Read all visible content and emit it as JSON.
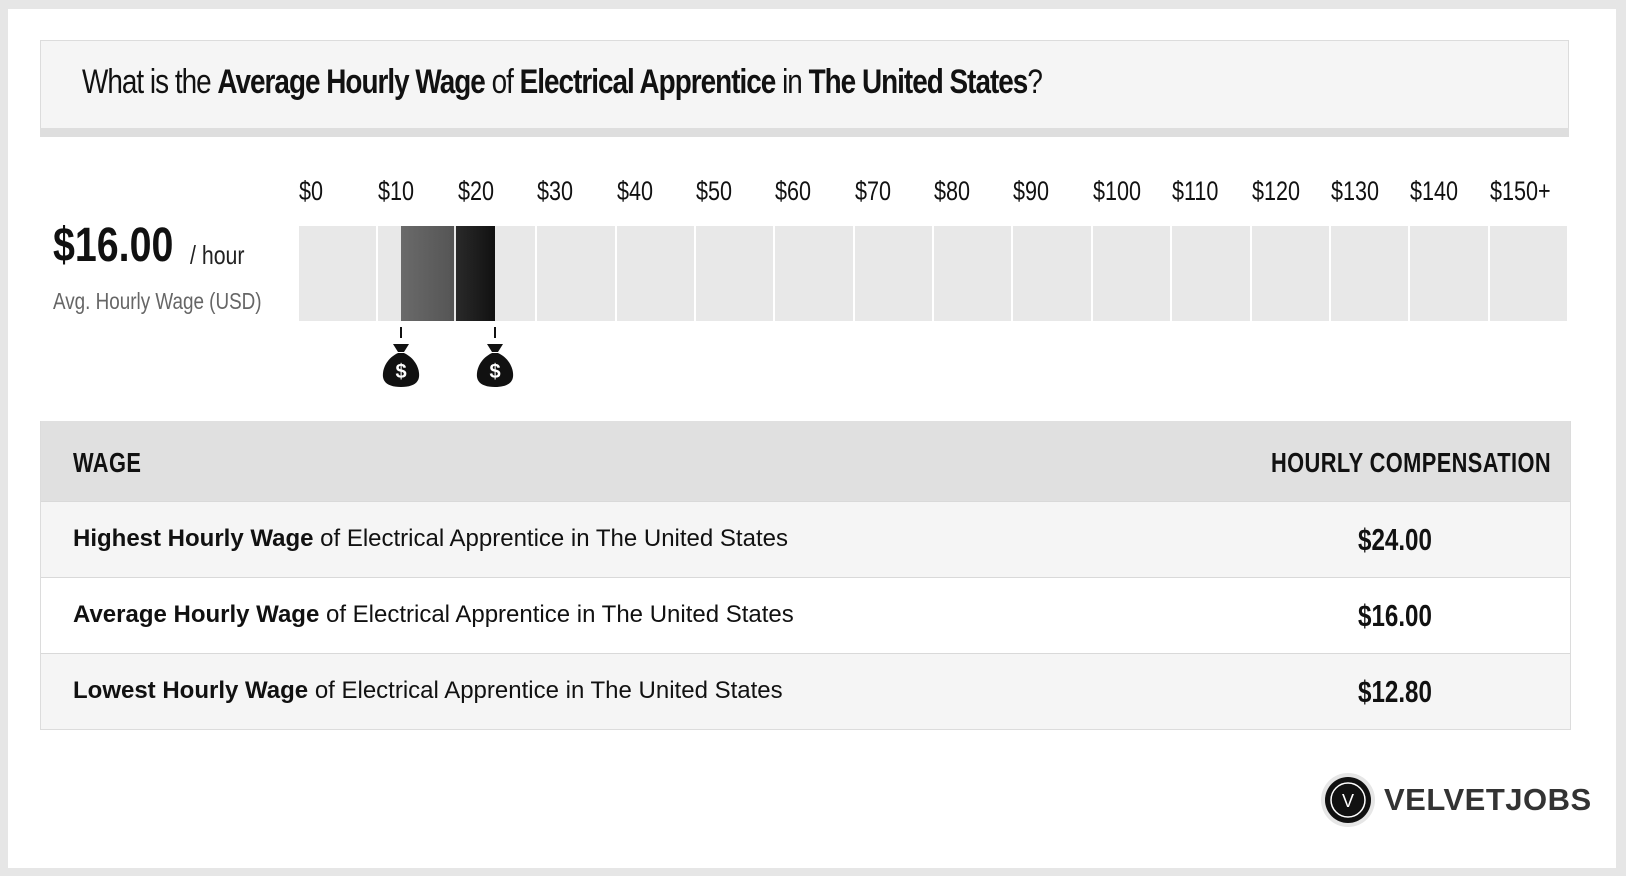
{
  "header": {
    "q_prefix": "What is the",
    "q_metric": "Average Hourly Wage",
    "q_of": "of",
    "q_job": "Electrical Apprentice",
    "q_in": "in",
    "q_location": "The United States",
    "q_end": "?"
  },
  "average": {
    "value": "$16.00",
    "unit": "/ hour",
    "caption": "Avg. Hourly Wage (USD)"
  },
  "chart_data": {
    "type": "bar",
    "ticks": [
      "$0",
      "$10",
      "$20",
      "$30",
      "$40",
      "$50",
      "$60",
      "$70",
      "$80",
      "$90",
      "$100",
      "$110",
      "$120",
      "$130",
      "$140",
      "$150+"
    ],
    "x_range": [
      0,
      160
    ],
    "lowest": 12.8,
    "average": 16.0,
    "highest": 24.0,
    "colors": {
      "track": "#e8e8e8",
      "low_to_avg": "#555555",
      "avg_to_high": "#111111"
    },
    "markers": [
      "money-bag-icon",
      "money-bag-icon"
    ]
  },
  "table": {
    "col_wage": "WAGE",
    "col_comp": "HOURLY COMPENSATION",
    "rows": [
      {
        "bold": "Highest Hourly Wage",
        "rest": "of Electrical Apprentice in The United States",
        "value": "$24.00"
      },
      {
        "bold": "Average Hourly Wage",
        "rest": "of Electrical Apprentice in The United States",
        "value": "$16.00"
      },
      {
        "bold": "Lowest Hourly Wage",
        "rest": "of Electrical Apprentice in The United States",
        "value": "$12.80"
      }
    ]
  },
  "brand": {
    "name": "VELVETJOBS",
    "mark": "V"
  }
}
